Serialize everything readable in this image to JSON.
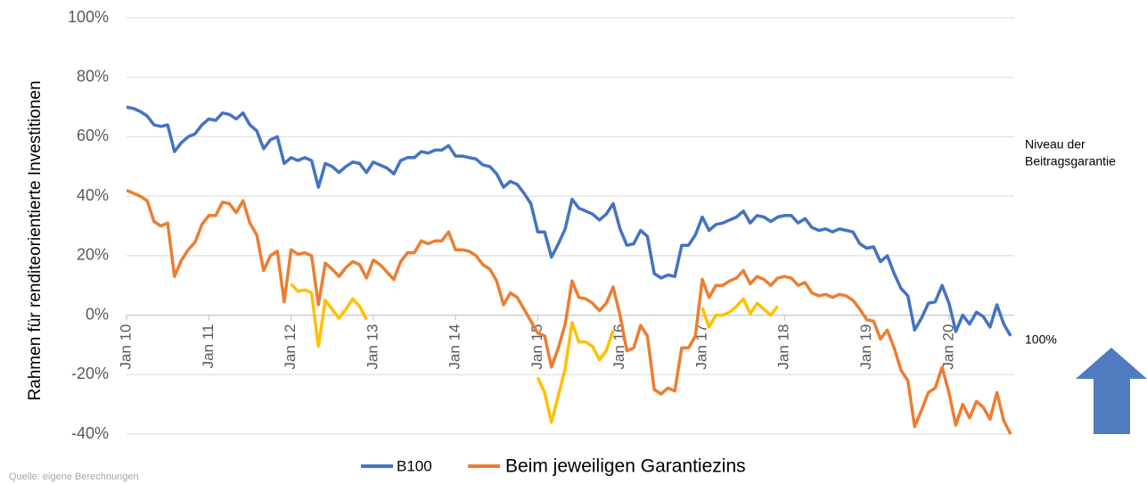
{
  "chart_data": {
    "type": "line",
    "ylabel": "Rahmen für renditeorientierte Investitionen",
    "annotation_lines": [
      "Niveau der",
      "Beitragsgarantie"
    ],
    "annotation_level": "100%",
    "source": "Quelle: eigene Berechnungen",
    "categories": [
      "Jan 10",
      null,
      null,
      null,
      null,
      null,
      null,
      null,
      null,
      null,
      null,
      null,
      "Jan 11",
      null,
      null,
      null,
      null,
      null,
      null,
      null,
      null,
      null,
      null,
      null,
      "Jan 12",
      null,
      null,
      null,
      null,
      null,
      null,
      null,
      null,
      null,
      null,
      null,
      "Jan 13",
      null,
      null,
      null,
      null,
      null,
      null,
      null,
      null,
      null,
      null,
      null,
      "Jan 14",
      null,
      null,
      null,
      null,
      null,
      null,
      null,
      null,
      null,
      null,
      null,
      "Jan 15",
      null,
      null,
      null,
      null,
      null,
      null,
      null,
      null,
      null,
      null,
      null,
      "Jan 16",
      null,
      null,
      null,
      null,
      null,
      null,
      null,
      null,
      null,
      null,
      null,
      "Jan 17",
      null,
      null,
      null,
      null,
      null,
      null,
      null,
      null,
      null,
      null,
      null,
      "Jan 18",
      null,
      null,
      null,
      null,
      null,
      null,
      null,
      null,
      null,
      null,
      null,
      "Jan 19",
      null,
      null,
      null,
      null,
      null,
      null,
      null,
      null,
      null,
      null,
      null,
      "Jan 20",
      null,
      null,
      null,
      null,
      null,
      null,
      null,
      null,
      null
    ],
    "series": [
      {
        "name": "B100",
        "color": "#4472c4",
        "values": [
          70,
          69.5,
          68.5,
          67,
          64,
          63.5,
          64,
          55,
          58,
          60,
          61,
          64,
          66,
          65.5,
          68,
          67.5,
          66,
          68,
          64,
          62,
          56,
          59,
          60,
          51,
          53,
          52,
          53,
          52,
          43,
          51,
          50,
          48,
          50,
          51.5,
          51,
          48,
          51.5,
          50.5,
          49.5,
          47.5,
          52,
          53,
          53,
          55,
          54.5,
          55.5,
          55.5,
          57,
          53.5,
          53.5,
          53,
          52.5,
          50.5,
          50,
          47.5,
          43,
          45,
          44,
          41,
          37.5,
          28,
          28,
          19.5,
          24,
          29,
          39,
          36,
          35,
          34,
          32,
          34,
          37.5,
          29,
          23.5,
          24,
          28.5,
          26.5,
          14,
          12.5,
          13.5,
          13,
          23.5,
          23.5,
          27,
          33,
          28.5,
          30.5,
          31,
          32,
          33,
          35,
          31,
          33.5,
          33,
          31.5,
          33,
          33.5,
          33.5,
          31,
          32.5,
          29.5,
          28.5,
          29,
          28,
          29,
          28.5,
          28,
          24,
          22.5,
          23,
          18,
          20,
          14,
          9,
          6.5,
          -5,
          -1,
          4,
          4.5,
          10,
          4,
          -5.5,
          0,
          -3,
          1,
          -0.5,
          -4,
          3.5,
          -3,
          -7
        ]
      },
      {
        "name": "Beim jeweiligen Garantiezins",
        "color": "#ed7d31",
        "values": [
          42,
          41,
          40,
          38.5,
          31.5,
          30,
          31,
          13,
          18.5,
          22,
          24.5,
          30.5,
          33.5,
          33.5,
          38,
          37.5,
          34.5,
          38.5,
          31,
          27,
          15,
          20,
          21.5,
          4.5,
          22,
          20.5,
          21,
          20,
          3.5,
          17.5,
          15.5,
          13,
          16,
          18,
          17,
          12.5,
          18.5,
          17,
          14.5,
          12,
          18,
          21,
          21,
          25,
          24,
          25,
          25,
          28,
          22,
          22,
          21.5,
          20,
          17,
          15.5,
          11.5,
          3.5,
          7.5,
          6,
          2,
          -2,
          -6,
          -7,
          -17.5,
          -11,
          -3,
          11.5,
          6,
          5.5,
          4,
          1.5,
          4,
          9.5,
          0,
          -12,
          -11,
          -3.5,
          -7,
          -25,
          -26.5,
          -24.5,
          -25.5,
          -11,
          -11,
          -7,
          12,
          6,
          10,
          10,
          11.5,
          12.5,
          15,
          10.5,
          13,
          12,
          10,
          12.5,
          13,
          12.5,
          10,
          11,
          7.5,
          6.5,
          7,
          6,
          7,
          6.5,
          5,
          2,
          -1.5,
          -2,
          -8,
          -5,
          -11,
          -18.5,
          -22,
          -37.5,
          -32,
          -26,
          -24.5,
          -17.5,
          -26,
          -37,
          -30,
          -34.5,
          -29,
          -31,
          -35,
          -26,
          -35.5,
          -40
        ]
      },
      {
        "color": "#ffc000",
        "values": [
          null,
          null,
          null,
          null,
          null,
          null,
          null,
          null,
          null,
          null,
          null,
          null,
          null,
          null,
          null,
          null,
          null,
          null,
          null,
          null,
          null,
          null,
          null,
          null,
          10.5,
          8,
          8.5,
          7.5,
          -10.5,
          5,
          2,
          -1,
          2,
          5.5,
          3,
          -1.5,
          null,
          null,
          null,
          null,
          null,
          null,
          null,
          null,
          null,
          null,
          null,
          null,
          null,
          null,
          null,
          null,
          null,
          null,
          null,
          null,
          null,
          null,
          null,
          null,
          -21,
          -26,
          -36,
          -27,
          -18,
          -2.5,
          -9,
          -9,
          -10.5,
          -15,
          -12,
          -5,
          null,
          null,
          null,
          null,
          null,
          null,
          null,
          null,
          null,
          null,
          null,
          null,
          2.5,
          -4,
          0,
          0,
          1,
          3,
          5.5,
          0.5,
          4,
          2,
          0,
          3,
          null,
          null,
          null,
          null,
          null,
          null,
          null,
          null,
          null,
          null,
          null,
          null,
          null,
          null,
          null,
          null,
          null,
          null,
          null,
          null,
          null,
          null,
          null,
          null,
          null,
          null,
          null,
          null,
          null,
          null,
          null,
          null,
          null,
          null
        ]
      }
    ],
    "ylim": [
      -40,
      100
    ],
    "yticks": [
      {
        "value": -40,
        "label": "-40%"
      },
      {
        "value": -20,
        "label": "-20%"
      },
      {
        "value": 0,
        "label": "0%"
      },
      {
        "value": 20,
        "label": "20%"
      },
      {
        "value": 40,
        "label": "40%"
      },
      {
        "value": 60,
        "label": "60%"
      },
      {
        "value": 80,
        "label": "80%"
      },
      {
        "value": 100,
        "label": "100%"
      }
    ],
    "grid": true
  }
}
